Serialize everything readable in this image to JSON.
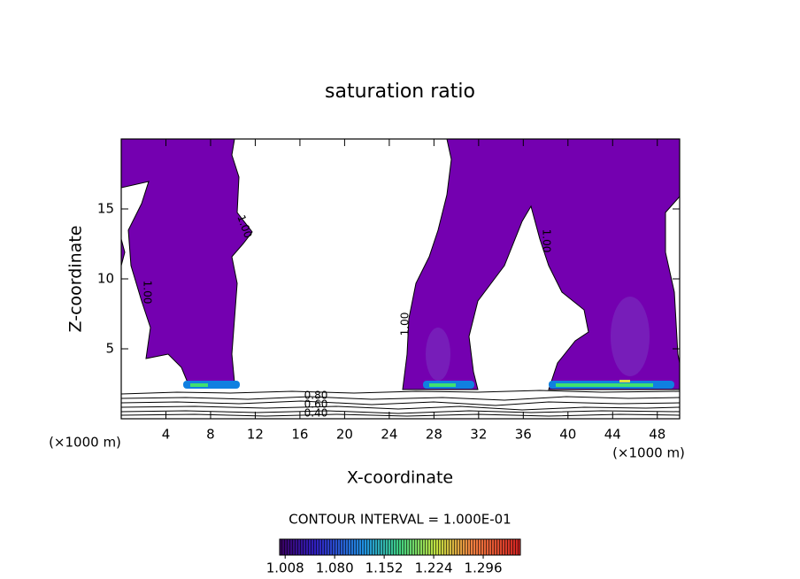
{
  "chart_data": {
    "type": "contour",
    "title": "saturation ratio",
    "x_label": "X-coordinate",
    "y_label": "Z-coordinate",
    "x_unit_labels": [
      "(×1000 m)",
      "(×1000 m)"
    ],
    "xlim": [
      0,
      50
    ],
    "xticks": [
      4,
      8,
      12,
      16,
      20,
      24,
      28,
      32,
      36,
      40,
      44,
      48
    ],
    "ylim": [
      0,
      20
    ],
    "yticks": [
      5,
      10,
      15
    ],
    "contour_labels": [
      "1.00",
      "1.00",
      "1.00",
      "1.00",
      "0.80",
      "0.60",
      "0.40"
    ],
    "contour_interval_label": "CONTOUR INTERVAL = 1.000E-01",
    "colorbar": {
      "lim": [
        1.0,
        1.35
      ],
      "ticks": [
        {
          "value": 1.008,
          "label": "1.008"
        },
        {
          "value": 1.08,
          "label": "1.080"
        },
        {
          "value": 1.152,
          "label": "1.152"
        },
        {
          "value": 1.224,
          "label": "1.224"
        },
        {
          "value": 1.296,
          "label": "1.296"
        }
      ]
    }
  }
}
